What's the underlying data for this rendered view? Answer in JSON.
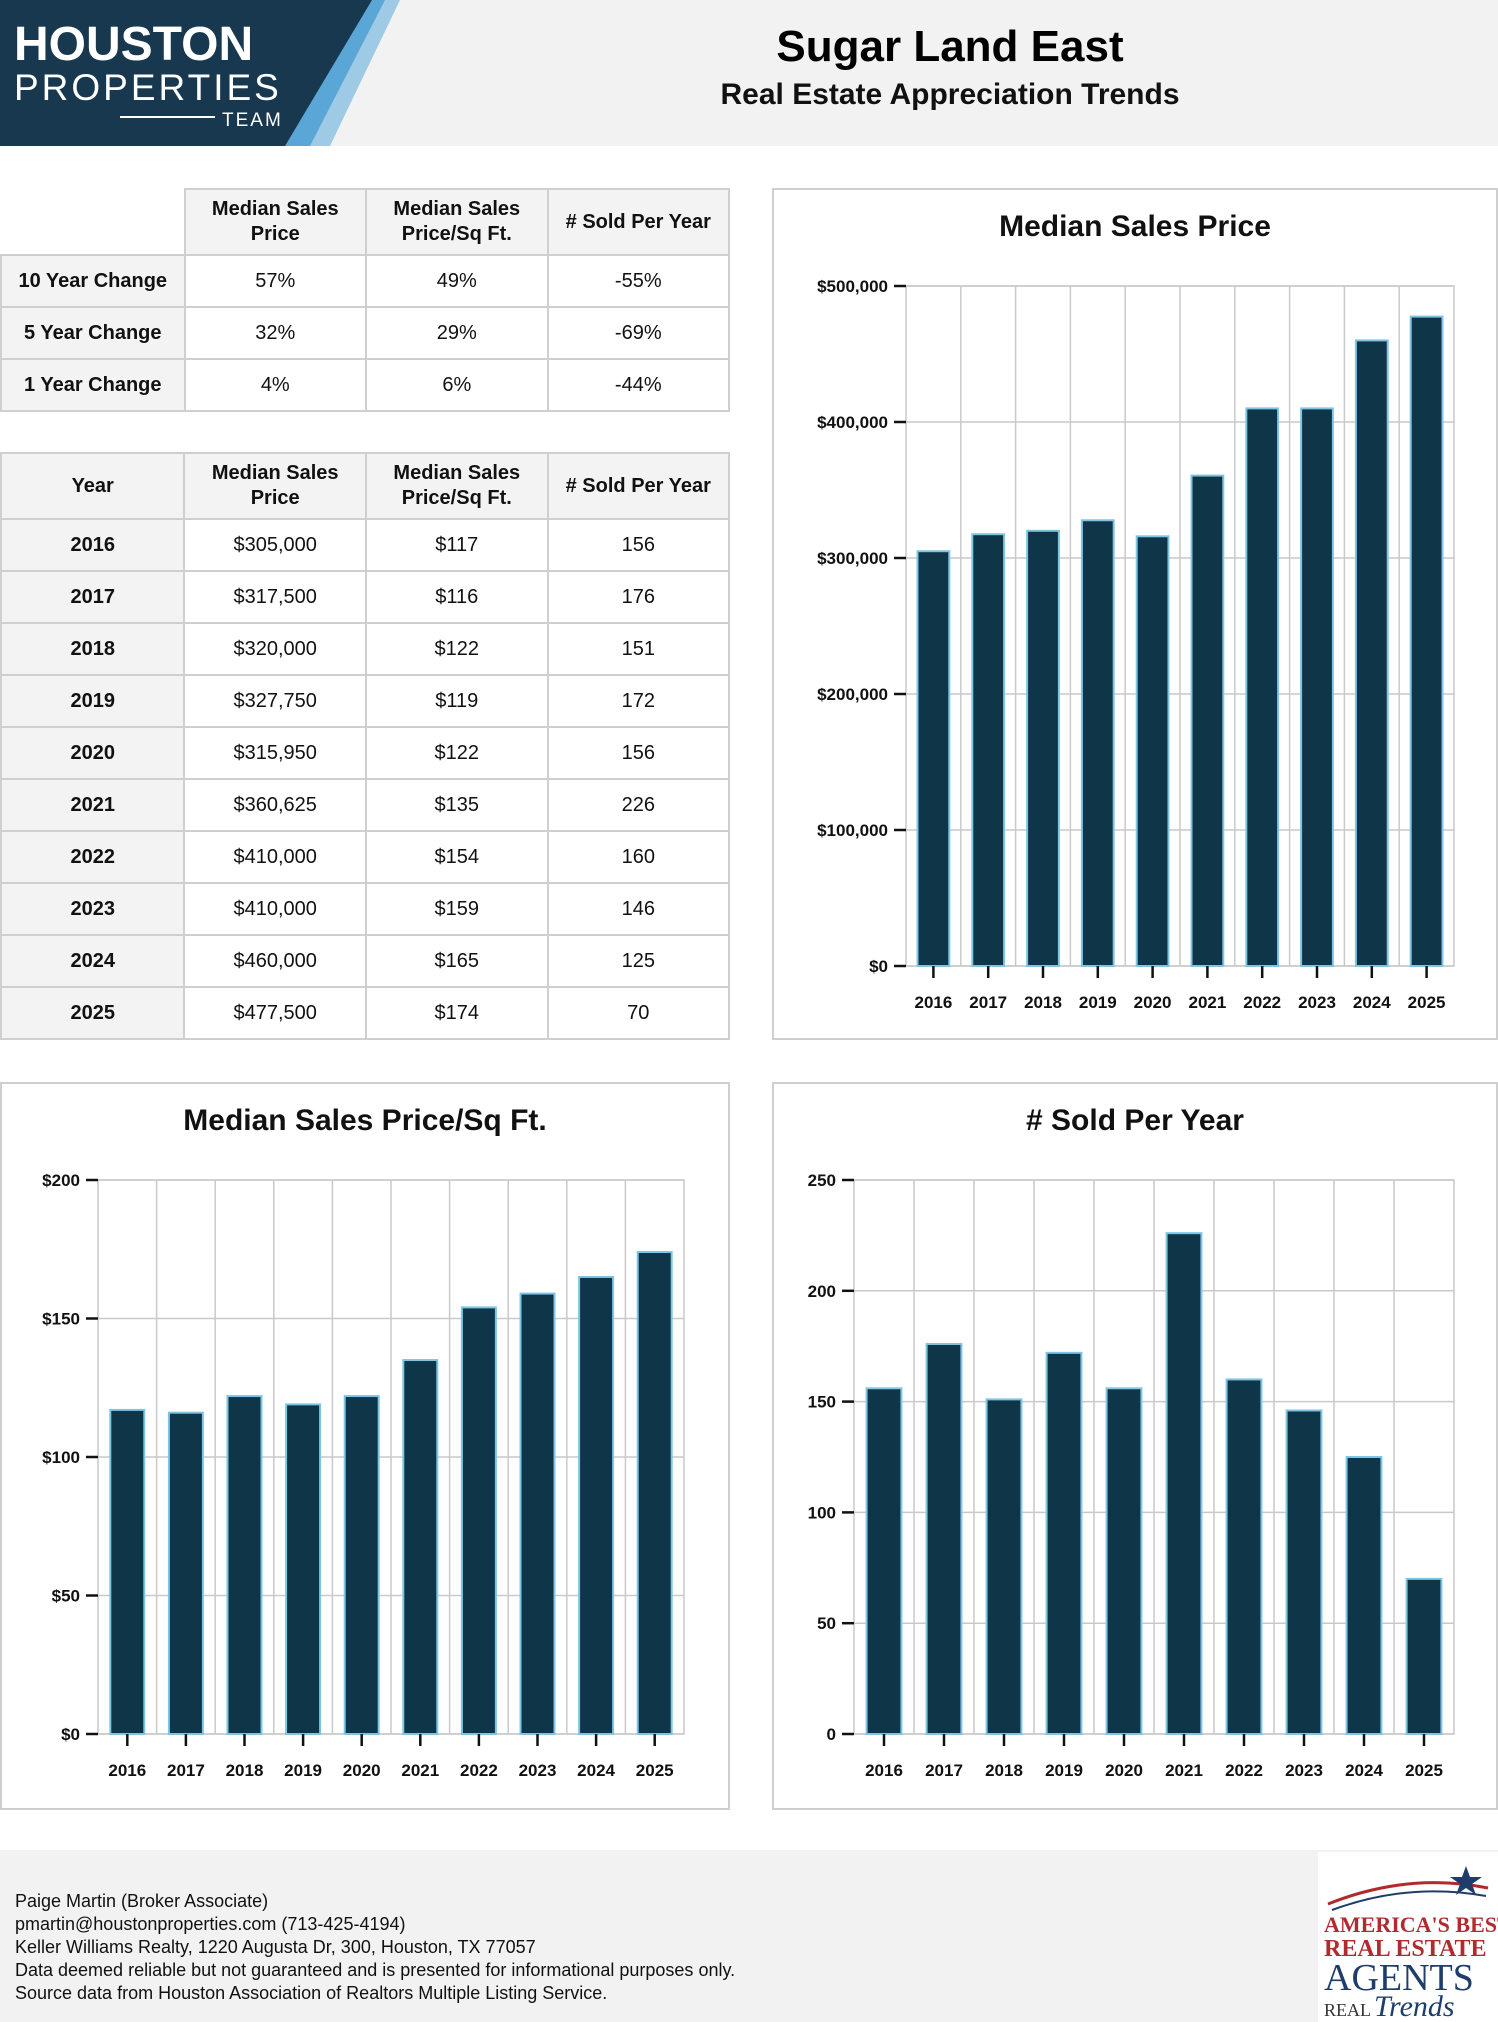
{
  "header": {
    "logo_line1": "HOUSTON",
    "logo_line2": "PROPERTIES",
    "logo_line3": "TEAM",
    "title": "Sugar Land East",
    "subtitle": "Real Estate Appreciation Trends"
  },
  "change_table": {
    "columns": [
      "Median Sales Price",
      "Median Sales Price/Sq Ft.",
      "# Sold Per Year"
    ],
    "rows": [
      {
        "label": "10 Year Change",
        "price": "57%",
        "sqft": "49%",
        "sold": "-55%"
      },
      {
        "label": "5 Year Change",
        "price": "32%",
        "sqft": "29%",
        "sold": "-69%"
      },
      {
        "label": "1 Year Change",
        "price": "4%",
        "sqft": "6%",
        "sold": "-44%"
      }
    ]
  },
  "year_table": {
    "columns": [
      "Year",
      "Median Sales Price",
      "Median Sales Price/Sq Ft.",
      "# Sold Per Year"
    ],
    "rows": [
      {
        "year": "2016",
        "price": "$305,000",
        "sqft": "$117",
        "sold": "156"
      },
      {
        "year": "2017",
        "price": "$317,500",
        "sqft": "$116",
        "sold": "176"
      },
      {
        "year": "2018",
        "price": "$320,000",
        "sqft": "$122",
        "sold": "151"
      },
      {
        "year": "2019",
        "price": "$327,750",
        "sqft": "$119",
        "sold": "172"
      },
      {
        "year": "2020",
        "price": "$315,950",
        "sqft": "$122",
        "sold": "156"
      },
      {
        "year": "2021",
        "price": "$360,625",
        "sqft": "$135",
        "sold": "226"
      },
      {
        "year": "2022",
        "price": "$410,000",
        "sqft": "$154",
        "sold": "160"
      },
      {
        "year": "2023",
        "price": "$410,000",
        "sqft": "$159",
        "sold": "146"
      },
      {
        "year": "2024",
        "price": "$460,000",
        "sqft": "$165",
        "sold": "125"
      },
      {
        "year": "2025",
        "price": "$477,500",
        "sqft": "$174",
        "sold": "70"
      }
    ]
  },
  "chart_data": [
    {
      "type": "bar",
      "title": "Median Sales Price",
      "categories": [
        "2016",
        "2017",
        "2018",
        "2019",
        "2020",
        "2021",
        "2022",
        "2023",
        "2024",
        "2025"
      ],
      "values": [
        305000,
        317500,
        320000,
        327750,
        315950,
        360625,
        410000,
        410000,
        460000,
        477500
      ],
      "yticks": [
        0,
        100000,
        200000,
        300000,
        400000,
        500000
      ],
      "ytick_labels": [
        "$0",
        "$100,000",
        "$200,000",
        "$300,000",
        "$400,000",
        "$500,000"
      ],
      "ylim": [
        0,
        500000
      ],
      "grid": true,
      "bar_color": "#0f3549",
      "bar_edge_color": "#7fc4e3"
    },
    {
      "type": "bar",
      "title": "Median Sales Price/Sq Ft.",
      "categories": [
        "2016",
        "2017",
        "2018",
        "2019",
        "2020",
        "2021",
        "2022",
        "2023",
        "2024",
        "2025"
      ],
      "values": [
        117,
        116,
        122,
        119,
        122,
        135,
        154,
        159,
        165,
        174
      ],
      "yticks": [
        0,
        50,
        100,
        150,
        200
      ],
      "ytick_labels": [
        "$0",
        "$50",
        "$100",
        "$150",
        "$200"
      ],
      "ylim": [
        0,
        200
      ],
      "grid": true,
      "bar_color": "#0f3549",
      "bar_edge_color": "#7fc4e3"
    },
    {
      "type": "bar",
      "title": "# Sold Per Year",
      "categories": [
        "2016",
        "2017",
        "2018",
        "2019",
        "2020",
        "2021",
        "2022",
        "2023",
        "2024",
        "2025"
      ],
      "values": [
        156,
        176,
        151,
        172,
        156,
        226,
        160,
        146,
        125,
        70
      ],
      "yticks": [
        0,
        50,
        100,
        150,
        200,
        250
      ],
      "ytick_labels": [
        "0",
        "50",
        "100",
        "150",
        "200",
        "250"
      ],
      "ylim": [
        0,
        250
      ],
      "grid": true,
      "bar_color": "#0f3549",
      "bar_edge_color": "#7fc4e3"
    }
  ],
  "footer": {
    "lines": [
      "Paige Martin (Broker Associate)",
      "pmartin@houstonproperties.com (713-425-4194)",
      "Keller Williams Realty, 1220 Augusta Dr, 300, Houston, TX 77057",
      "Data deemed reliable but not guaranteed and is presented for informational purposes only.",
      "Source data from Houston Association of Realtors Multiple Listing Service."
    ],
    "badge_line1": "AMERICA'S BEST",
    "badge_line2": "REAL ESTATE",
    "badge_line3": "AGENTS",
    "badge_line4": "REAL",
    "badge_line5": "Trends"
  }
}
